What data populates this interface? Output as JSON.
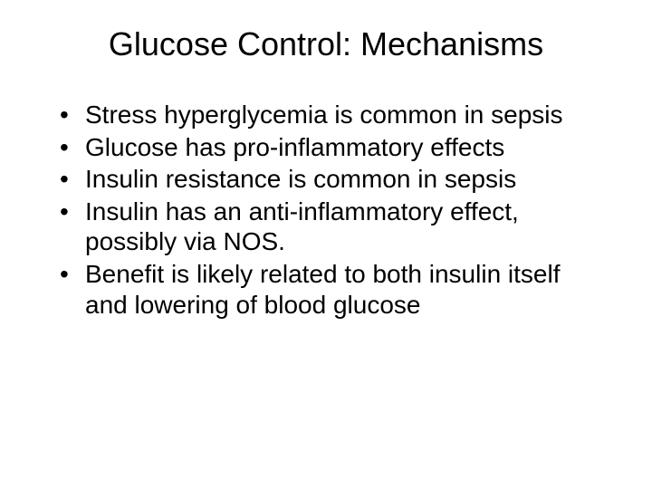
{
  "slide": {
    "title": "Glucose Control: Mechanisms",
    "bullets": [
      "Stress hyperglycemia is common in sepsis",
      "Glucose has pro-inflammatory effects",
      "Insulin resistance is common in sepsis",
      "Insulin has an anti-inflammatory effect, possibly via NOS.",
      "Benefit is likely related to both insulin itself and lowering of blood glucose"
    ],
    "title_fontsize": 36,
    "body_fontsize": 28,
    "background_color": "#ffffff",
    "text_color": "#000000",
    "font_family": "Arial"
  }
}
